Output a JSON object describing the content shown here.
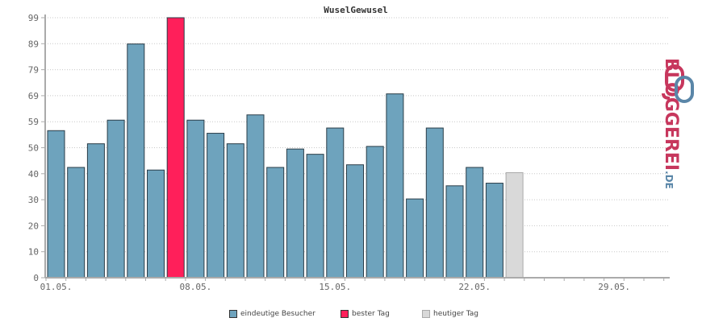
{
  "chart_data": {
    "type": "bar",
    "title": "WuselGewusel",
    "y_ticks": [
      "0",
      "10",
      "20",
      "30",
      "40",
      "50",
      "59",
      "69",
      "79",
      "89",
      "99"
    ],
    "x_tick_labels": [
      "01.05.",
      "08.05.",
      "15.05.",
      "22.05.",
      "29.05."
    ],
    "ylim": [
      0,
      99
    ],
    "grid": true,
    "legend_position": "bottom",
    "series": [
      {
        "name": "eindeutige Besucher",
        "color": "#6ea3bd",
        "x": [
          "01.05.",
          "02.05.",
          "03.05.",
          "04.05.",
          "05.05.",
          "06.05.",
          "07.05.",
          "08.05.",
          "09.05.",
          "10.05.",
          "11.05.",
          "12.05.",
          "13.05.",
          "14.05.",
          "15.05.",
          "16.05.",
          "17.05.",
          "18.05.",
          "19.05.",
          "20.05.",
          "21.05.",
          "22.05.",
          "23.05."
        ],
        "values": [
          56,
          42,
          51,
          60,
          89,
          41,
          null,
          60,
          55,
          51,
          62,
          42,
          49,
          47,
          57,
          43,
          50,
          70,
          30,
          57,
          35,
          42,
          36
        ]
      },
      {
        "name": "bester Tag",
        "color": "#ff1f5a",
        "x": [
          "07.05."
        ],
        "values": [
          99
        ]
      },
      {
        "name": "heutiger Tag",
        "color": "#d9d9d9",
        "x": [
          "24.05."
        ],
        "values": [
          40
        ]
      }
    ]
  },
  "logo": {
    "text": "BLOGGEREI",
    "suffix": ".DE",
    "colors": {
      "primary": "#c7375d",
      "secondary": "#5a86a8"
    }
  }
}
